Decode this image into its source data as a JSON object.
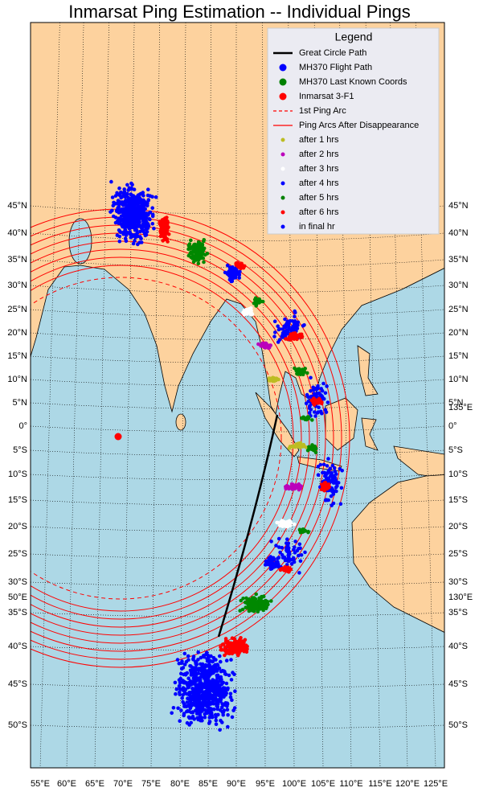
{
  "map": {
    "title": "Inmarsat Ping Estimation -- Individual Pings",
    "legend": {
      "title": "Legend",
      "items": [
        {
          "label": "Great Circle Path",
          "style": "line",
          "color": "#000000"
        },
        {
          "label": "MH370 Flight Path",
          "style": "marker",
          "color": "#0000ff"
        },
        {
          "label": "MH370 Last Known Coords",
          "style": "marker",
          "color": "#008000"
        },
        {
          "label": "Inmarsat 3-F1",
          "style": "marker",
          "color": "#ff0000"
        },
        {
          "label": "1st Ping Arc",
          "style": "dashed",
          "color": "#ff0000"
        },
        {
          "label": "Ping Arcs After Disappearance",
          "style": "line",
          "color": "#ff0000"
        },
        {
          "label": "after 1 hrs",
          "style": "dot",
          "color": "#bcbd22"
        },
        {
          "label": "after 2 hrs",
          "style": "dot",
          "color": "#bb00bb"
        },
        {
          "label": "after 3 hrs",
          "style": "dot",
          "color": "#ffffff"
        },
        {
          "label": "after 4 hrs",
          "style": "dot",
          "color": "#0000ff"
        },
        {
          "label": "after 5 hrs",
          "style": "dot",
          "color": "#008000"
        },
        {
          "label": "after 6 hrs",
          "style": "dot",
          "color": "#ff0000"
        },
        {
          "label": "in final hr",
          "style": "dot",
          "color": "#0000ff"
        }
      ]
    },
    "lat_labels": [
      "45°N",
      "40°N",
      "35°N",
      "30°N",
      "25°N",
      "20°N",
      "15°N",
      "10°N",
      "5°N",
      "0°",
      "5°S",
      "10°S",
      "15°S",
      "20°S",
      "25°S",
      "30°S",
      "35°S",
      "40°S",
      "45°S",
      "50°S"
    ],
    "lon_labels": [
      "55°E",
      "60°E",
      "65°E",
      "70°E",
      "75°E",
      "80°E",
      "85°E",
      "90°E",
      "95°E",
      "100°E",
      "105°E",
      "110°E",
      "115°E",
      "120°E",
      "125°E"
    ],
    "edge_labels": [
      "50°E",
      "130°E",
      "135°E"
    ]
  }
}
